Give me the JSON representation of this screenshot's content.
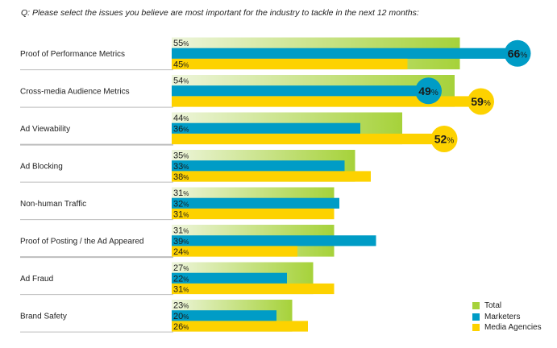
{
  "question": "Q: Please select the issues you believe are most important for the industry to tackle in the next 12 months:",
  "chart_data": {
    "type": "bar",
    "orientation": "horizontal",
    "title": "Q: Please select the issues you believe are most important for the industry to tackle in the next 12 months:",
    "xlabel": "",
    "ylabel": "",
    "xlim": [
      0,
      70
    ],
    "grid": false,
    "legend_position": "bottom-right",
    "value_suffix": "%",
    "categories": [
      "Proof of Performance Metrics",
      "Cross-media Audience Metrics",
      "Ad Viewability",
      "Ad Blocking",
      "Non-human Traffic",
      "Proof of Posting / the Ad Appeared",
      "Ad Fraud",
      "Brand Safety"
    ],
    "series": [
      {
        "name": "Total",
        "color": "#a6d23a",
        "values": [
          55,
          54,
          44,
          35,
          31,
          31,
          27,
          23
        ]
      },
      {
        "name": "Marketers",
        "color": "#009cc6",
        "values": [
          66,
          49,
          36,
          33,
          32,
          39,
          22,
          20
        ]
      },
      {
        "name": "Media Agencies",
        "color": "#fdd200",
        "values": [
          45,
          59,
          52,
          38,
          31,
          24,
          31,
          26
        ]
      }
    ],
    "highlighted": [
      {
        "category": "Proof of Performance Metrics",
        "series": "Marketers",
        "value": 66
      },
      {
        "category": "Cross-media Audience Metrics",
        "series": "Marketers",
        "value": 49
      },
      {
        "category": "Cross-media Audience Metrics",
        "series": "Media Agencies",
        "value": 59
      },
      {
        "category": "Ad Viewability",
        "series": "Media Agencies",
        "value": 52
      }
    ]
  },
  "legend": {
    "items": [
      {
        "label": "Total",
        "color": "#a6d23a"
      },
      {
        "label": "Marketers",
        "color": "#009cc6"
      },
      {
        "label": "Media Agencies",
        "color": "#fdd200"
      }
    ]
  }
}
